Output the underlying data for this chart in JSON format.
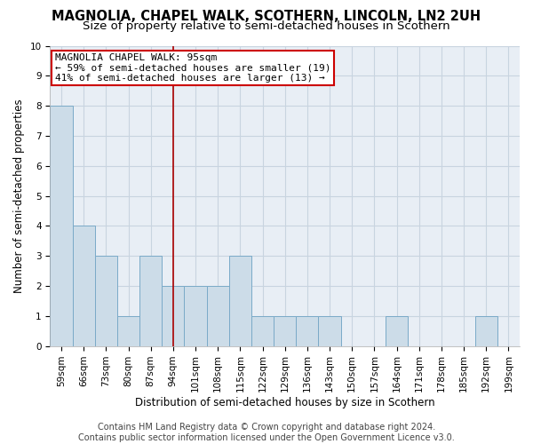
{
  "title": "MAGNOLIA, CHAPEL WALK, SCOTHERN, LINCOLN, LN2 2UH",
  "subtitle": "Size of property relative to semi-detached houses in Scothern",
  "xlabel": "Distribution of semi-detached houses by size in Scothern",
  "ylabel": "Number of semi-detached properties",
  "categories": [
    "59sqm",
    "66sqm",
    "73sqm",
    "80sqm",
    "87sqm",
    "94sqm",
    "101sqm",
    "108sqm",
    "115sqm",
    "122sqm",
    "129sqm",
    "136sqm",
    "143sqm",
    "150sqm",
    "157sqm",
    "164sqm",
    "171sqm",
    "178sqm",
    "185sqm",
    "192sqm",
    "199sqm"
  ],
  "values": [
    8,
    4,
    3,
    1,
    3,
    2,
    2,
    2,
    3,
    1,
    1,
    1,
    1,
    0,
    0,
    1,
    0,
    0,
    0,
    1,
    0
  ],
  "bar_color": "#ccdce8",
  "bar_edge_color": "#7aaac8",
  "highlight_index": 5,
  "highlight_line_color": "#aa0000",
  "annotation_text": "MAGNOLIA CHAPEL WALK: 95sqm\n← 59% of semi-detached houses are smaller (19)\n41% of semi-detached houses are larger (13) →",
  "annotation_box_color": "#ffffff",
  "annotation_box_edge": "#cc0000",
  "ylim": [
    0,
    10
  ],
  "yticks": [
    0,
    1,
    2,
    3,
    4,
    5,
    6,
    7,
    8,
    9,
    10
  ],
  "footer_line1": "Contains HM Land Registry data © Crown copyright and database right 2024.",
  "footer_line2": "Contains public sector information licensed under the Open Government Licence v3.0.",
  "background_color": "#e8eef5",
  "grid_color": "#c8d4e0",
  "title_fontsize": 10.5,
  "subtitle_fontsize": 9.5,
  "axis_label_fontsize": 8.5,
  "tick_fontsize": 7.5,
  "footer_fontsize": 7.0,
  "annotation_fontsize": 8.0
}
